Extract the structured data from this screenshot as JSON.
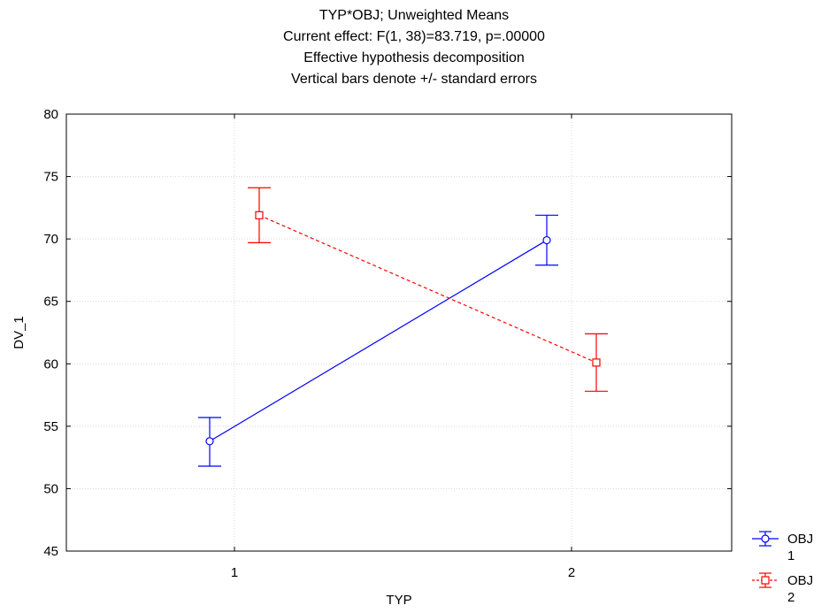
{
  "chart_data": {
    "type": "line",
    "title_lines": [
      "TYP*OBJ; Unweighted Means",
      "Current effect: F(1, 38)=83.719, p=.00000",
      "Effective hypothesis decomposition",
      "Vertical bars denote +/- standard errors"
    ],
    "xlabel": "TYP",
    "ylabel": "DV_1",
    "categories": [
      "1",
      "2"
    ],
    "y_ticks": [
      45,
      50,
      55,
      60,
      65,
      70,
      75,
      80
    ],
    "ylim": [
      45,
      80
    ],
    "grid": true,
    "legend_position": "bottom-right",
    "series": [
      {
        "name": "OBJ 1",
        "name_lines": [
          "OBJ",
          "1"
        ],
        "color": "#0000ff",
        "line_style": "solid",
        "marker": "circle",
        "values": [
          53.8,
          69.9
        ],
        "error_low": [
          51.8,
          67.9
        ],
        "error_high": [
          55.7,
          71.9
        ]
      },
      {
        "name": "OBJ 2",
        "name_lines": [
          "OBJ",
          "2"
        ],
        "color": "#ff0000",
        "line_style": "dashed",
        "marker": "square",
        "values": [
          71.9,
          60.1
        ],
        "error_low": [
          69.7,
          57.8
        ],
        "error_high": [
          74.1,
          62.4
        ]
      }
    ]
  }
}
